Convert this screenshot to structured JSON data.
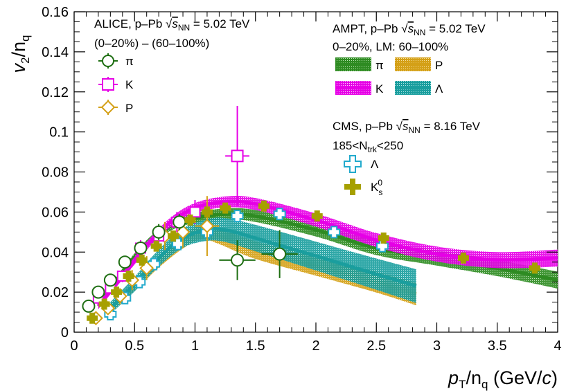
{
  "chart_data": {
    "type": "scatter",
    "xlabel": "p_T/n_q (GeV/c)",
    "ylabel": "v_2/n_q",
    "xlim": [
      0,
      4
    ],
    "ylim": [
      0,
      0.16
    ],
    "x_ticks": [
      "0",
      "0.5",
      "1",
      "1.5",
      "2",
      "2.5",
      "3",
      "3.5",
      "4"
    ],
    "y_ticks": [
      "0",
      "0.02",
      "0.04",
      "0.06",
      "0.08",
      "0.1",
      "0.12",
      "0.14",
      "0.16"
    ],
    "legend_alice": {
      "title_pre": "ALICE, p–Pb ",
      "title_post": " = 5.02 TeV",
      "centrality": "(0–20%) – (60–100%)",
      "entries": [
        "π",
        "K",
        "P"
      ]
    },
    "legend_ampt": {
      "title_pre": "AMPT, p–Pb ",
      "title_post": " = 5.02 TeV",
      "centrality": "0–20%, LM: 60–100%",
      "entries": [
        "π",
        "P",
        "K",
        "Λ"
      ]
    },
    "legend_cms": {
      "title_pre": "CMS, p–Pb ",
      "title_post": " = 8.16 TeV",
      "multiplicity_pre": "185<N",
      "multiplicity_sub": "trk",
      "multiplicity_post": "<250",
      "entries": [
        "Λ",
        "K"
      ]
    },
    "sqrt_s": "s",
    "sqrt_s_sub": "NN",
    "kshort_sub": "s",
    "kshort_sup": "0",
    "colors": {
      "pion": "#2e8b22",
      "kaon": "#e600e6",
      "proton": "#d4a017",
      "lambda": "#1a9e9e",
      "lambda_marker": "#22aacc",
      "k0s": "#a6a000",
      "pion_marker": "#1e6e12"
    },
    "series": [
      {
        "name": "ALICE π",
        "x": [
          0.12,
          0.2,
          0.3,
          0.42,
          0.55,
          0.7,
          0.87,
          1.35,
          1.7
        ],
        "y": [
          0.013,
          0.02,
          0.026,
          0.035,
          0.042,
          0.05,
          0.055,
          0.036,
          0.039
        ],
        "yerr": [
          0.002,
          0.002,
          0.002,
          0.003,
          0.003,
          0.004,
          0.004,
          0.01,
          0.012
        ]
      },
      {
        "name": "ALICE K",
        "x": [
          0.2,
          0.3,
          0.4,
          0.55,
          0.7,
          0.85,
          1.0,
          1.35
        ],
        "y": [
          0.017,
          0.022,
          0.028,
          0.042,
          0.048,
          0.055,
          0.06,
          0.088
        ],
        "yerr": [
          0.003,
          0.003,
          0.003,
          0.004,
          0.004,
          0.005,
          0.006,
          0.025
        ]
      },
      {
        "name": "ALICE P",
        "x": [
          0.18,
          0.28,
          0.38,
          0.48,
          0.6,
          0.75,
          0.9,
          1.1
        ],
        "y": [
          0.007,
          0.012,
          0.018,
          0.026,
          0.032,
          0.048,
          0.05,
          0.053
        ],
        "yerr": [
          0.003,
          0.003,
          0.004,
          0.005,
          0.006,
          0.007,
          0.008,
          0.015
        ]
      },
      {
        "name": "CMS Λ",
        "x": [
          0.3,
          0.42,
          0.54,
          0.66,
          0.86,
          1.1,
          1.35,
          1.7,
          2.15,
          2.55
        ],
        "y": [
          0.009,
          0.017,
          0.025,
          0.034,
          0.044,
          0.05,
          0.058,
          0.059,
          0.05,
          0.043
        ]
      },
      {
        "name": "CMS K",
        "x": [
          0.15,
          0.25,
          0.35,
          0.45,
          0.56,
          0.68,
          0.82,
          0.96,
          1.1,
          1.25,
          1.57,
          2.01,
          2.56,
          3.22,
          3.81
        ],
        "y": [
          0.007,
          0.014,
          0.02,
          0.028,
          0.036,
          0.043,
          0.048,
          0.056,
          0.06,
          0.062,
          0.063,
          0.058,
          0.047,
          0.037,
          0.032
        ]
      },
      {
        "name": "AMPT π",
        "x": [
          0.2,
          0.4,
          0.6,
          0.8,
          1.0,
          1.25,
          1.5,
          2.0,
          2.5,
          3.0,
          3.5,
          4.0
        ],
        "y": [
          0.013,
          0.03,
          0.044,
          0.053,
          0.057,
          0.059,
          0.058,
          0.051,
          0.042,
          0.037,
          0.032,
          0.026
        ],
        "band": 0.0015
      },
      {
        "name": "AMPT K",
        "x": [
          0.2,
          0.4,
          0.6,
          0.8,
          1.0,
          1.25,
          1.5,
          2.0,
          2.5,
          3.0,
          3.5,
          4.0
        ],
        "y": [
          0.013,
          0.028,
          0.043,
          0.055,
          0.062,
          0.065,
          0.064,
          0.056,
          0.046,
          0.039,
          0.036,
          0.037
        ],
        "band": 0.0015
      },
      {
        "name": "AMPT P",
        "x": [
          0.3,
          0.5,
          0.7,
          0.9,
          1.05,
          1.2,
          1.5,
          2.0,
          2.5,
          2.83
        ],
        "y": [
          0.012,
          0.023,
          0.035,
          0.045,
          0.05,
          0.048,
          0.041,
          0.033,
          0.025,
          0.019
        ],
        "band": 0.002
      },
      {
        "name": "AMPT Λ",
        "x": [
          0.3,
          0.5,
          0.7,
          0.9,
          1.1,
          1.25,
          1.5,
          2.0,
          2.5,
          2.83
        ],
        "y": [
          0.012,
          0.024,
          0.037,
          0.047,
          0.051,
          0.051,
          0.047,
          0.038,
          0.029,
          0.023
        ],
        "band": 0.003
      }
    ]
  }
}
